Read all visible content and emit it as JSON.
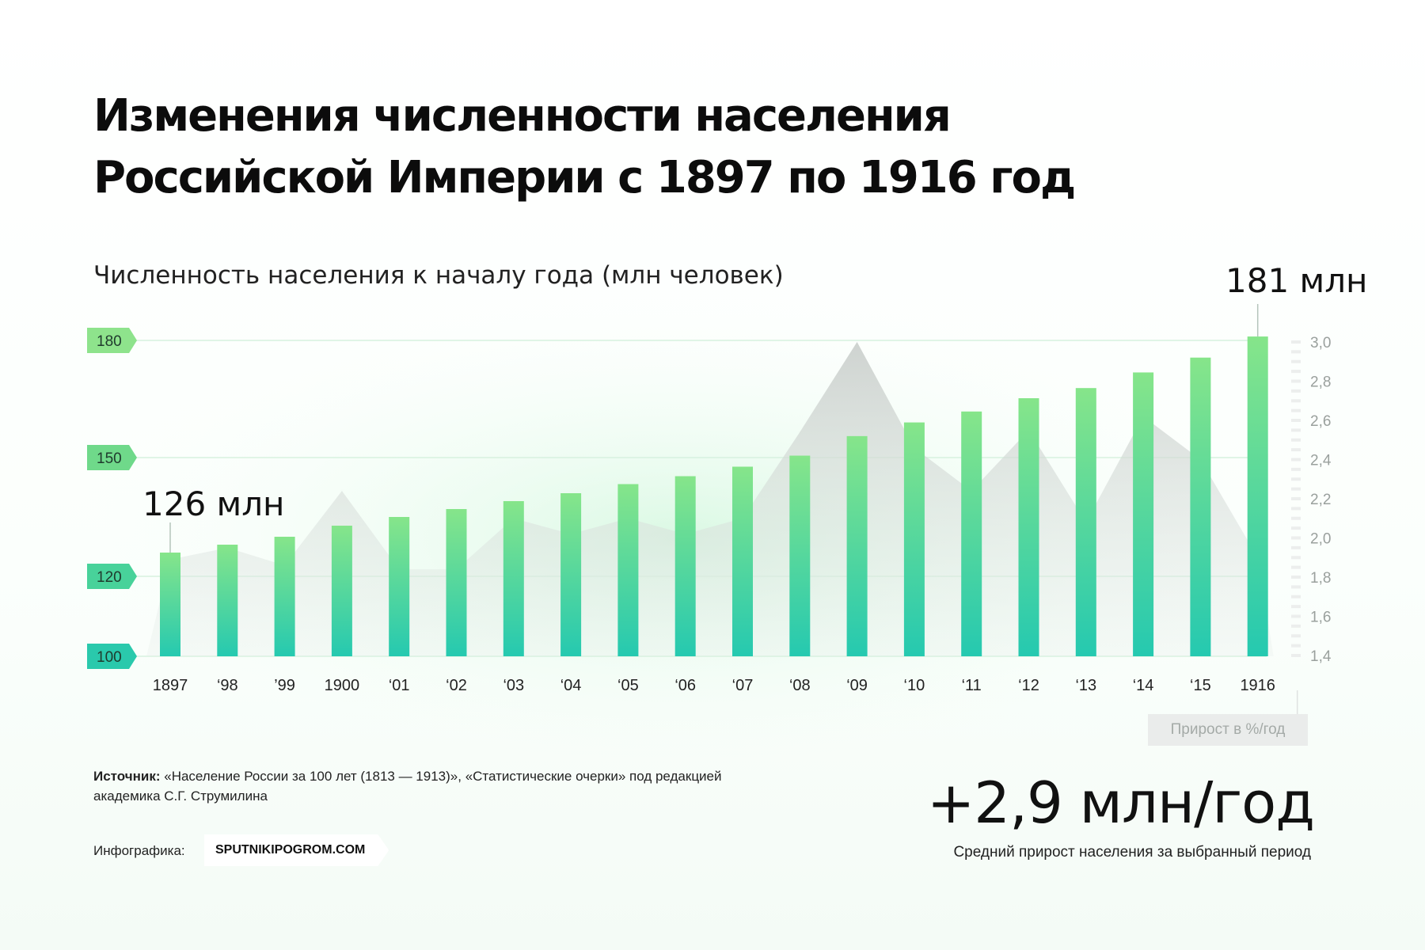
{
  "title_line1": "Изменения численности населения",
  "title_line2": "Российской Империи с 1897 по 1916 год",
  "subtitle": "Численность населения к началу года (млн человек)",
  "callout_start": "126 млн",
  "callout_end": "181 млн",
  "growth_axis_label": "Прирост в  %/год",
  "source_label": "Источник:",
  "source_text": "«Население России за 100 лет (1813 — 1913)», «Статистические очерки» под редакцией академика С.Г. Струмилина",
  "credit_label": "Инфографика:",
  "brand": "SPUTNIKIPOGROM.COM",
  "summary_value": "+2,9 млн/год",
  "summary_caption": "Средний прирост населения за выбранный период",
  "colors": {
    "bar_top": "#86e58a",
    "bar_bottom": "#25c9b0",
    "tag_180": "#8ee38c",
    "tag_150": "#6fd98a",
    "tag_120": "#48d29a",
    "tag_100": "#2ac9ac",
    "growth_area": "#b8bdb9"
  },
  "chart_data": [
    {
      "type": "bar",
      "title": "Численность населения к началу года (млн человек)",
      "categories": [
        "1897",
        "‘98",
        "’99",
        "1900",
        "‘01",
        "‘02",
        "‘03",
        "‘04",
        "‘05",
        "‘06",
        "‘07",
        "‘08",
        "‘09",
        "‘10",
        "‘11",
        "‘12",
        "‘13",
        "‘14",
        "‘15",
        "1916"
      ],
      "values": [
        126,
        128,
        130,
        132.8,
        135,
        137,
        139,
        141,
        143.3,
        145.3,
        147.7,
        150.5,
        155.5,
        159,
        161.8,
        165.2,
        167.8,
        171.8,
        175.6,
        181
      ],
      "y_ticks": [
        "180",
        "150",
        "120",
        "100"
      ],
      "y_tick_values": [
        180,
        150,
        120,
        100
      ],
      "yaxis_mapping_points": [
        [
          100,
          100
        ],
        [
          120,
          120
        ],
        [
          150,
          150
        ],
        [
          180,
          180
        ]
      ],
      "yaxis_note": "axis is non-linear: 100–120 segment compressed relative to 120–180",
      "grid": true,
      "annotations": [
        "126 млн",
        "181 млн"
      ]
    },
    {
      "type": "area",
      "title": "Прирост в  %/год",
      "categories": [
        "1897",
        "‘98",
        "’99",
        "1900",
        "‘01",
        "‘02",
        "‘03",
        "‘04",
        "‘05",
        "‘06",
        "‘07",
        "‘08",
        "‘09",
        "‘10",
        "‘11",
        "‘12",
        "‘13",
        "‘14",
        "‘15",
        "1916"
      ],
      "values": [
        1.89,
        1.95,
        1.86,
        2.24,
        1.84,
        1.84,
        2.1,
        2.02,
        2.1,
        2.02,
        2.1,
        2.54,
        3.0,
        2.46,
        2.24,
        2.55,
        2.08,
        2.62,
        2.4,
        1.9
      ],
      "y_ticks": [
        "3,0",
        "2,8",
        "2,6",
        "2,4",
        "2,2",
        "2,0",
        "1,8",
        "1,6",
        "1,4"
      ],
      "ylim": [
        1.4,
        3.0
      ],
      "axis_position": "right"
    }
  ]
}
